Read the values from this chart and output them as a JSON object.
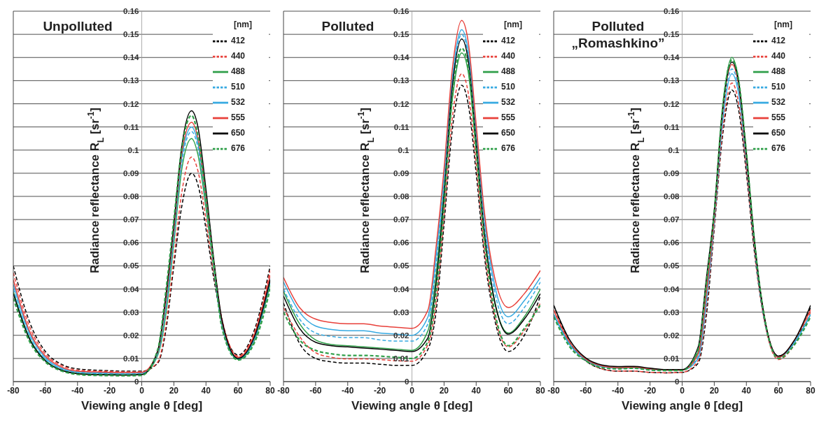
{
  "chart_data": [
    {
      "type": "line",
      "title": "Unpolluted",
      "xlabel": "Viewing angle  θ  [deg]",
      "ylabel": "Radiance reflectance  R$_{L}$  [sr$^{-1}$]",
      "legend_title": "[nm]",
      "legend": "top right",
      "grid": "y",
      "xlim": [
        -80,
        80
      ],
      "xticks": [
        -80,
        -60,
        -40,
        -20,
        0,
        20,
        40,
        60,
        80
      ],
      "ylim": [
        0,
        0.16
      ],
      "yticks": [
        0,
        0.01,
        0.02,
        0.03,
        0.04,
        0.05,
        0.06,
        0.07,
        0.08,
        0.09,
        0.1,
        0.11,
        0.12,
        0.13,
        0.14,
        0.15,
        0.16
      ],
      "x": [
        -80,
        -70,
        -60,
        -50,
        -40,
        -30,
        -20,
        -10,
        0,
        10,
        15,
        20,
        25,
        31,
        35,
        40,
        45,
        50,
        60,
        70,
        80
      ],
      "series": [
        {
          "name": "412",
          "color": "#000000",
          "line_style": "dashed",
          "values": [
            0.05,
            0.026,
            0.013,
            0.0075,
            0.0055,
            0.005,
            0.0047,
            0.0045,
            0.0045,
            0.008,
            0.022,
            0.05,
            0.076,
            0.09,
            0.085,
            0.066,
            0.044,
            0.026,
            0.0115,
            0.022,
            0.05
          ]
        },
        {
          "name": "440",
          "color": "#e8403a",
          "line_style": "dashed",
          "values": [
            0.047,
            0.024,
            0.012,
            0.007,
            0.005,
            0.0046,
            0.0044,
            0.0042,
            0.0043,
            0.0085,
            0.024,
            0.053,
            0.082,
            0.097,
            0.091,
            0.07,
            0.046,
            0.027,
            0.011,
            0.021,
            0.048
          ]
        },
        {
          "name": "488",
          "color": "#2e9e48",
          "line_style": "solid",
          "values": [
            0.039,
            0.019,
            0.0092,
            0.0051,
            0.0036,
            0.0032,
            0.0031,
            0.003,
            0.0032,
            0.0115,
            0.029,
            0.06,
            0.092,
            0.105,
            0.098,
            0.075,
            0.048,
            0.024,
            0.0096,
            0.0175,
            0.042
          ]
        },
        {
          "name": "510",
          "color": "#36a9e1",
          "line_style": "dashed",
          "values": [
            0.04,
            0.0198,
            0.0096,
            0.0054,
            0.0039,
            0.0035,
            0.0034,
            0.0033,
            0.0035,
            0.012,
            0.031,
            0.062,
            0.095,
            0.108,
            0.101,
            0.077,
            0.049,
            0.0245,
            0.0098,
            0.018,
            0.043
          ]
        },
        {
          "name": "532",
          "color": "#36a9e1",
          "line_style": "solid",
          "values": [
            0.042,
            0.021,
            0.0103,
            0.0058,
            0.0042,
            0.0038,
            0.0037,
            0.0036,
            0.0038,
            0.0125,
            0.033,
            0.064,
            0.097,
            0.11,
            0.103,
            0.078,
            0.05,
            0.025,
            0.01,
            0.019,
            0.045
          ]
        },
        {
          "name": "555",
          "color": "#e8403a",
          "line_style": "solid",
          "values": [
            0.044,
            0.022,
            0.011,
            0.0063,
            0.0045,
            0.0042,
            0.004,
            0.0039,
            0.004,
            0.013,
            0.035,
            0.066,
            0.099,
            0.112,
            0.105,
            0.079,
            0.051,
            0.026,
            0.0105,
            0.02,
            0.046
          ]
        },
        {
          "name": "650",
          "color": "#000000",
          "line_style": "solid",
          "values": [
            0.038,
            0.0185,
            0.0089,
            0.0049,
            0.0034,
            0.003,
            0.0029,
            0.0028,
            0.003,
            0.0135,
            0.037,
            0.068,
            0.102,
            0.117,
            0.11,
            0.083,
            0.052,
            0.0265,
            0.01,
            0.019,
            0.044
          ]
        },
        {
          "name": "676",
          "color": "#2e9e48",
          "line_style": "dashed",
          "values": [
            0.036,
            0.0175,
            0.0085,
            0.0046,
            0.0031,
            0.0027,
            0.0026,
            0.0025,
            0.0027,
            0.014,
            0.039,
            0.07,
            0.101,
            0.115,
            0.106,
            0.079,
            0.05,
            0.023,
            0.0093,
            0.0165,
            0.04
          ]
        }
      ]
    },
    {
      "type": "line",
      "title": "Polluted",
      "xlabel": "Viewing angle  θ  [deg]",
      "ylabel": "Radiance reflectance  R$_{L}$  [sr$^{-1}$]",
      "legend_title": "[nm]",
      "legend": "top right",
      "grid": "y",
      "xlim": [
        -80,
        80
      ],
      "xticks": [
        -80,
        -60,
        -40,
        -20,
        0,
        20,
        40,
        60,
        80
      ],
      "ylim": [
        0,
        0.16
      ],
      "yticks": [
        0,
        0.01,
        0.02,
        0.03,
        0.04,
        0.05,
        0.06,
        0.07,
        0.08,
        0.09,
        0.1,
        0.11,
        0.12,
        0.13,
        0.14,
        0.15,
        0.16
      ],
      "x": [
        -80,
        -70,
        -60,
        -50,
        -40,
        -30,
        -20,
        -10,
        0,
        10,
        15,
        20,
        25,
        31,
        35,
        40,
        45,
        50,
        60,
        70,
        80
      ],
      "series": [
        {
          "name": "412",
          "color": "#000000",
          "line_style": "dashed",
          "values": [
            0.034,
            0.0165,
            0.01,
            0.0085,
            0.008,
            0.008,
            0.0075,
            0.007,
            0.007,
            0.014,
            0.03,
            0.068,
            0.108,
            0.128,
            0.12,
            0.09,
            0.055,
            0.032,
            0.013,
            0.02,
            0.037
          ]
        },
        {
          "name": "440",
          "color": "#e8403a",
          "line_style": "dashed",
          "values": [
            0.032,
            0.0195,
            0.0125,
            0.0105,
            0.0098,
            0.0098,
            0.0095,
            0.009,
            0.0088,
            0.016,
            0.034,
            0.072,
            0.113,
            0.133,
            0.125,
            0.094,
            0.058,
            0.034,
            0.015,
            0.022,
            0.034
          ]
        },
        {
          "name": "488",
          "color": "#2e9e48",
          "line_style": "solid",
          "values": [
            0.039,
            0.025,
            0.018,
            0.016,
            0.0155,
            0.015,
            0.0145,
            0.014,
            0.0135,
            0.022,
            0.046,
            0.083,
            0.121,
            0.142,
            0.134,
            0.1,
            0.064,
            0.04,
            0.021,
            0.028,
            0.04
          ]
        },
        {
          "name": "510",
          "color": "#36a9e1",
          "line_style": "dashed",
          "values": [
            0.04,
            0.027,
            0.021,
            0.0195,
            0.019,
            0.019,
            0.018,
            0.0175,
            0.0175,
            0.025,
            0.05,
            0.086,
            0.128,
            0.15,
            0.141,
            0.106,
            0.069,
            0.044,
            0.025,
            0.032,
            0.043
          ]
        },
        {
          "name": "532",
          "color": "#36a9e1",
          "line_style": "solid",
          "values": [
            0.043,
            0.03,
            0.024,
            0.0225,
            0.022,
            0.022,
            0.021,
            0.0205,
            0.02,
            0.028,
            0.054,
            0.089,
            0.13,
            0.152,
            0.143,
            0.108,
            0.071,
            0.047,
            0.028,
            0.035,
            0.045
          ]
        },
        {
          "name": "555",
          "color": "#e8403a",
          "line_style": "solid",
          "values": [
            0.045,
            0.032,
            0.027,
            0.0255,
            0.025,
            0.025,
            0.024,
            0.0235,
            0.023,
            0.031,
            0.058,
            0.092,
            0.134,
            0.156,
            0.147,
            0.111,
            0.074,
            0.05,
            0.032,
            0.038,
            0.048
          ]
        },
        {
          "name": "650",
          "color": "#000000",
          "line_style": "solid",
          "values": [
            0.037,
            0.023,
            0.017,
            0.0155,
            0.015,
            0.0145,
            0.014,
            0.0135,
            0.013,
            0.019,
            0.042,
            0.08,
            0.126,
            0.148,
            0.139,
            0.103,
            0.065,
            0.04,
            0.0205,
            0.027,
            0.038
          ]
        },
        {
          "name": "676",
          "color": "#2e9e48",
          "line_style": "dashed",
          "values": [
            0.03,
            0.018,
            0.0135,
            0.012,
            0.0113,
            0.0113,
            0.011,
            0.0105,
            0.01,
            0.0175,
            0.038,
            0.076,
            0.122,
            0.144,
            0.136,
            0.1,
            0.062,
            0.036,
            0.0155,
            0.023,
            0.033
          ]
        }
      ]
    },
    {
      "type": "line",
      "title": "Polluted „Romashkino”",
      "xlabel": "Viewing angle  θ  [deg]",
      "ylabel": "Radiance reflectance  R$_{L}$  [sr$^{-1}$]",
      "legend_title": "[nm]",
      "legend": "top right",
      "grid": "y",
      "xlim": [
        -80,
        80
      ],
      "xticks": [
        -80,
        -60,
        -40,
        -20,
        0,
        20,
        40,
        60,
        80
      ],
      "ylim": [
        0,
        0.16
      ],
      "yticks": [
        0,
        0.01,
        0.02,
        0.03,
        0.04,
        0.05,
        0.06,
        0.07,
        0.08,
        0.09,
        0.1,
        0.11,
        0.12,
        0.13,
        0.14,
        0.15,
        0.16
      ],
      "x": [
        -80,
        -70,
        -60,
        -50,
        -40,
        -30,
        -20,
        -10,
        0,
        10,
        15,
        20,
        25,
        31,
        35,
        40,
        45,
        50,
        60,
        70,
        80
      ],
      "series": [
        {
          "name": "412",
          "color": "#000000",
          "line_style": "dashed",
          "values": [
            0.033,
            0.017,
            0.009,
            0.0055,
            0.0045,
            0.0045,
            0.004,
            0.0038,
            0.004,
            0.008,
            0.028,
            0.066,
            0.105,
            0.126,
            0.118,
            0.09,
            0.056,
            0.031,
            0.011,
            0.017,
            0.032
          ]
        },
        {
          "name": "440",
          "color": "#e8403a",
          "line_style": "dashed",
          "values": [
            0.031,
            0.016,
            0.009,
            0.0055,
            0.0045,
            0.0045,
            0.004,
            0.0038,
            0.004,
            0.009,
            0.031,
            0.067,
            0.107,
            0.129,
            0.121,
            0.092,
            0.057,
            0.031,
            0.0095,
            0.016,
            0.03
          ]
        },
        {
          "name": "488",
          "color": "#2e9e48",
          "line_style": "solid",
          "values": [
            0.029,
            0.016,
            0.0095,
            0.0065,
            0.006,
            0.0062,
            0.0055,
            0.005,
            0.005,
            0.013,
            0.04,
            0.072,
            0.117,
            0.14,
            0.131,
            0.099,
            0.061,
            0.033,
            0.0105,
            0.017,
            0.029
          ]
        },
        {
          "name": "510",
          "color": "#36a9e1",
          "line_style": "dashed",
          "values": [
            0.029,
            0.016,
            0.0095,
            0.0065,
            0.0058,
            0.006,
            0.0053,
            0.005,
            0.005,
            0.011,
            0.036,
            0.07,
            0.113,
            0.135,
            0.127,
            0.096,
            0.059,
            0.032,
            0.0105,
            0.017,
            0.029
          ]
        },
        {
          "name": "532",
          "color": "#36a9e1",
          "line_style": "solid",
          "values": [
            0.029,
            0.016,
            0.0095,
            0.0065,
            0.0058,
            0.006,
            0.0053,
            0.005,
            0.005,
            0.01,
            0.034,
            0.069,
            0.111,
            0.133,
            0.125,
            0.095,
            0.059,
            0.032,
            0.0105,
            0.017,
            0.029
          ]
        },
        {
          "name": "555",
          "color": "#e8403a",
          "line_style": "solid",
          "values": [
            0.031,
            0.017,
            0.0098,
            0.0068,
            0.006,
            0.0062,
            0.0055,
            0.005,
            0.005,
            0.012,
            0.038,
            0.071,
            0.115,
            0.137,
            0.129,
            0.097,
            0.06,
            0.033,
            0.0105,
            0.018,
            0.031
          ]
        },
        {
          "name": "650",
          "color": "#000000",
          "line_style": "solid",
          "values": [
            0.033,
            0.018,
            0.0102,
            0.0072,
            0.0065,
            0.0066,
            0.0058,
            0.0052,
            0.0052,
            0.015,
            0.044,
            0.074,
            0.116,
            0.138,
            0.13,
            0.098,
            0.061,
            0.033,
            0.011,
            0.018,
            0.033
          ]
        },
        {
          "name": "676",
          "color": "#2e9e48",
          "line_style": "dashed",
          "values": [
            0.028,
            0.015,
            0.009,
            0.006,
            0.0055,
            0.0058,
            0.005,
            0.0048,
            0.0048,
            0.014,
            0.042,
            0.073,
            0.117,
            0.139,
            0.131,
            0.099,
            0.061,
            0.033,
            0.01,
            0.016,
            0.028
          ]
        }
      ]
    }
  ]
}
